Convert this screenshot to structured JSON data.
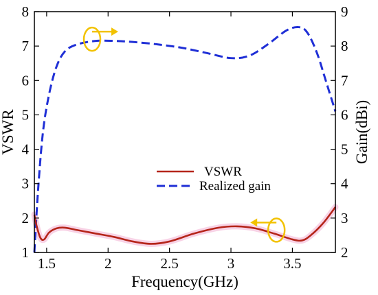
{
  "chart_data": {
    "type": "line",
    "xlabel": "Frequency(GHz)",
    "ylabel_left": "VSWR",
    "ylabel_right": "Gain(dBi)",
    "xlim": [
      1.4,
      3.85
    ],
    "ylim_left": [
      1,
      8
    ],
    "ylim_right": [
      2,
      9
    ],
    "x_ticks": [
      1.5,
      2,
      2.5,
      3,
      3.5
    ],
    "x_tick_labels": [
      "1.5",
      "2",
      "2.5",
      "3",
      "3.5"
    ],
    "y_left_ticks": [
      1,
      2,
      3,
      4,
      5,
      6,
      7,
      8
    ],
    "y_left_tick_labels": [
      "1",
      "2",
      "3",
      "4",
      "5",
      "6",
      "7",
      "8"
    ],
    "y_right_ticks": [
      2,
      3,
      4,
      5,
      6,
      7,
      8,
      9
    ],
    "y_right_tick_labels": [
      "2",
      "3",
      "4",
      "5",
      "6",
      "7",
      "8",
      "9"
    ],
    "grid": false,
    "legend_position": "center-right",
    "series": [
      {
        "name": "VSWR",
        "axis": "left",
        "color": "#b5251a",
        "style": "solid",
        "x": [
          1.4,
          1.42,
          1.45,
          1.48,
          1.52,
          1.58,
          1.65,
          1.75,
          1.9,
          2.05,
          2.2,
          2.35,
          2.5,
          2.7,
          2.9,
          3.05,
          3.2,
          3.35,
          3.5,
          3.58,
          3.65,
          3.75,
          3.85
        ],
        "y": [
          2.1,
          1.75,
          1.42,
          1.38,
          1.58,
          1.7,
          1.72,
          1.65,
          1.55,
          1.45,
          1.32,
          1.25,
          1.32,
          1.55,
          1.72,
          1.76,
          1.7,
          1.55,
          1.38,
          1.35,
          1.5,
          1.85,
          2.32
        ]
      },
      {
        "name": "Realized gain",
        "axis": "right",
        "color": "#1f2fd6",
        "style": "dashed",
        "x": [
          1.4,
          1.43,
          1.47,
          1.52,
          1.58,
          1.65,
          1.75,
          1.9,
          2.05,
          2.2,
          2.4,
          2.6,
          2.8,
          3.0,
          3.15,
          3.3,
          3.45,
          3.55,
          3.62,
          3.7,
          3.78,
          3.85
        ],
        "y": [
          2.0,
          3.8,
          5.5,
          6.6,
          7.4,
          7.85,
          8.05,
          8.15,
          8.15,
          8.12,
          8.05,
          7.95,
          7.8,
          7.65,
          7.72,
          8.05,
          8.45,
          8.55,
          8.4,
          7.8,
          6.9,
          6.1
        ]
      }
    ],
    "legend": [
      {
        "label": "VSWR",
        "color": "#b5251a",
        "style": "solid"
      },
      {
        "label": "Realized gain",
        "color": "#1f2fd6",
        "style": "dashed"
      }
    ],
    "annotations": [
      {
        "kind": "circle-arrow-right",
        "color": "#f2c200",
        "at_x": 1.87,
        "at_y_right": 8.2
      },
      {
        "kind": "circle-arrow-left",
        "color": "#f2c200",
        "at_x": 3.37,
        "at_y_left": 1.65
      }
    ]
  }
}
